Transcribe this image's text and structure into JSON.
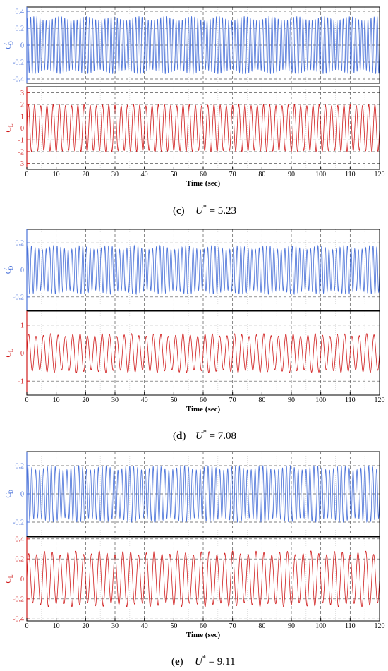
{
  "colors": {
    "drag": "#4a72d9",
    "lift": "#d01c1c",
    "axis": "#000000",
    "grid": "#9a9a9a"
  },
  "chart_data": [
    {
      "type": "line",
      "caption": {
        "letter": "c",
        "variable": "U",
        "superscript": "*",
        "value": "= 5.23"
      },
      "xlabel": "Time (sec)",
      "xlim": [
        0,
        120
      ],
      "xticks": [
        "0",
        "10",
        "20",
        "30",
        "40",
        "50",
        "60",
        "70",
        "80",
        "90",
        "100",
        "110",
        "120"
      ],
      "grid": true,
      "series": [
        {
          "panel": "top",
          "ylabel_main": "C",
          "ylabel_prime": "'",
          "ylabel_sub": "D",
          "ylim": [
            -0.45,
            0.45
          ],
          "yticks": [
            "-0.4",
            "-0.2",
            "0",
            "0.2",
            "0.4"
          ],
          "ytick_values": [
            -0.4,
            -0.2,
            0,
            0.2,
            0.4
          ],
          "signal": {
            "amplitude": 0.34,
            "amplitude_min": 0.29,
            "cycles": 114
          }
        },
        {
          "panel": "bottom",
          "ylabel_main": "C",
          "ylabel_prime": "",
          "ylabel_sub": "L",
          "ylim": [
            -3.5,
            3.5
          ],
          "yticks": [
            "-3",
            "-2",
            "-1",
            "0",
            "1",
            "2",
            "3"
          ],
          "ytick_values": [
            -3,
            -2,
            -1,
            0,
            1,
            2,
            3
          ],
          "signal": {
            "amplitude": 2.0,
            "amplitude_min": 1.9,
            "cycles": 57
          }
        }
      ]
    },
    {
      "type": "line",
      "caption": {
        "letter": "d",
        "variable": "U",
        "superscript": "*",
        "value": "= 7.08"
      },
      "xlabel": "Time (sec)",
      "xlim": [
        0,
        120
      ],
      "xticks": [
        "0",
        "10",
        "20",
        "30",
        "40",
        "50",
        "60",
        "70",
        "80",
        "90",
        "100",
        "110",
        "120"
      ],
      "grid": true,
      "series": [
        {
          "panel": "top",
          "ylabel_main": "C",
          "ylabel_prime": "'",
          "ylabel_sub": "D",
          "ylim": [
            -0.3,
            0.3
          ],
          "yticks": [
            "-0.2",
            "0",
            "0.2"
          ],
          "ytick_values": [
            -0.2,
            0,
            0.2
          ],
          "signal": {
            "amplitude": 0.18,
            "amplitude_min": 0.15,
            "cycles": 96
          }
        },
        {
          "panel": "bottom",
          "ylabel_main": "C",
          "ylabel_prime": "",
          "ylabel_sub": "L",
          "ylim": [
            -1.5,
            1.5
          ],
          "yticks": [
            "-1",
            "0",
            "1"
          ],
          "ytick_values": [
            -1,
            0,
            1
          ],
          "signal": {
            "amplitude": 0.7,
            "amplitude_min": 0.6,
            "cycles": 48
          }
        }
      ]
    },
    {
      "type": "line",
      "caption": {
        "letter": "e",
        "variable": "U",
        "superscript": "*",
        "value": "= 9.11"
      },
      "xlabel": "Time (sec)",
      "xlim": [
        0,
        120
      ],
      "xticks": [
        "0",
        "10",
        "20",
        "30",
        "40",
        "50",
        "60",
        "70",
        "80",
        "90",
        "100",
        "110",
        "120"
      ],
      "grid": true,
      "series": [
        {
          "panel": "top",
          "ylabel_main": "C",
          "ylabel_prime": "'",
          "ylabel_sub": "D",
          "ylim": [
            -0.3,
            0.3
          ],
          "yticks": [
            "-0.2",
            "0",
            "0.2"
          ],
          "ytick_values": [
            -0.2,
            0,
            0.2
          ],
          "signal": {
            "amplitude": 0.2,
            "amplitude_min": 0.17,
            "cycles": 90
          }
        },
        {
          "panel": "bottom",
          "ylabel_main": "C",
          "ylabel_prime": "",
          "ylabel_sub": "L",
          "ylim": [
            -0.42,
            0.42
          ],
          "yticks": [
            "-0.4",
            "-0.2",
            "0",
            "0.2",
            "0.4"
          ],
          "ytick_values": [
            -0.4,
            -0.2,
            0,
            0.2,
            0.4
          ],
          "signal": {
            "amplitude": 0.28,
            "amplitude_min": 0.24,
            "cycles": 45
          }
        }
      ]
    }
  ]
}
